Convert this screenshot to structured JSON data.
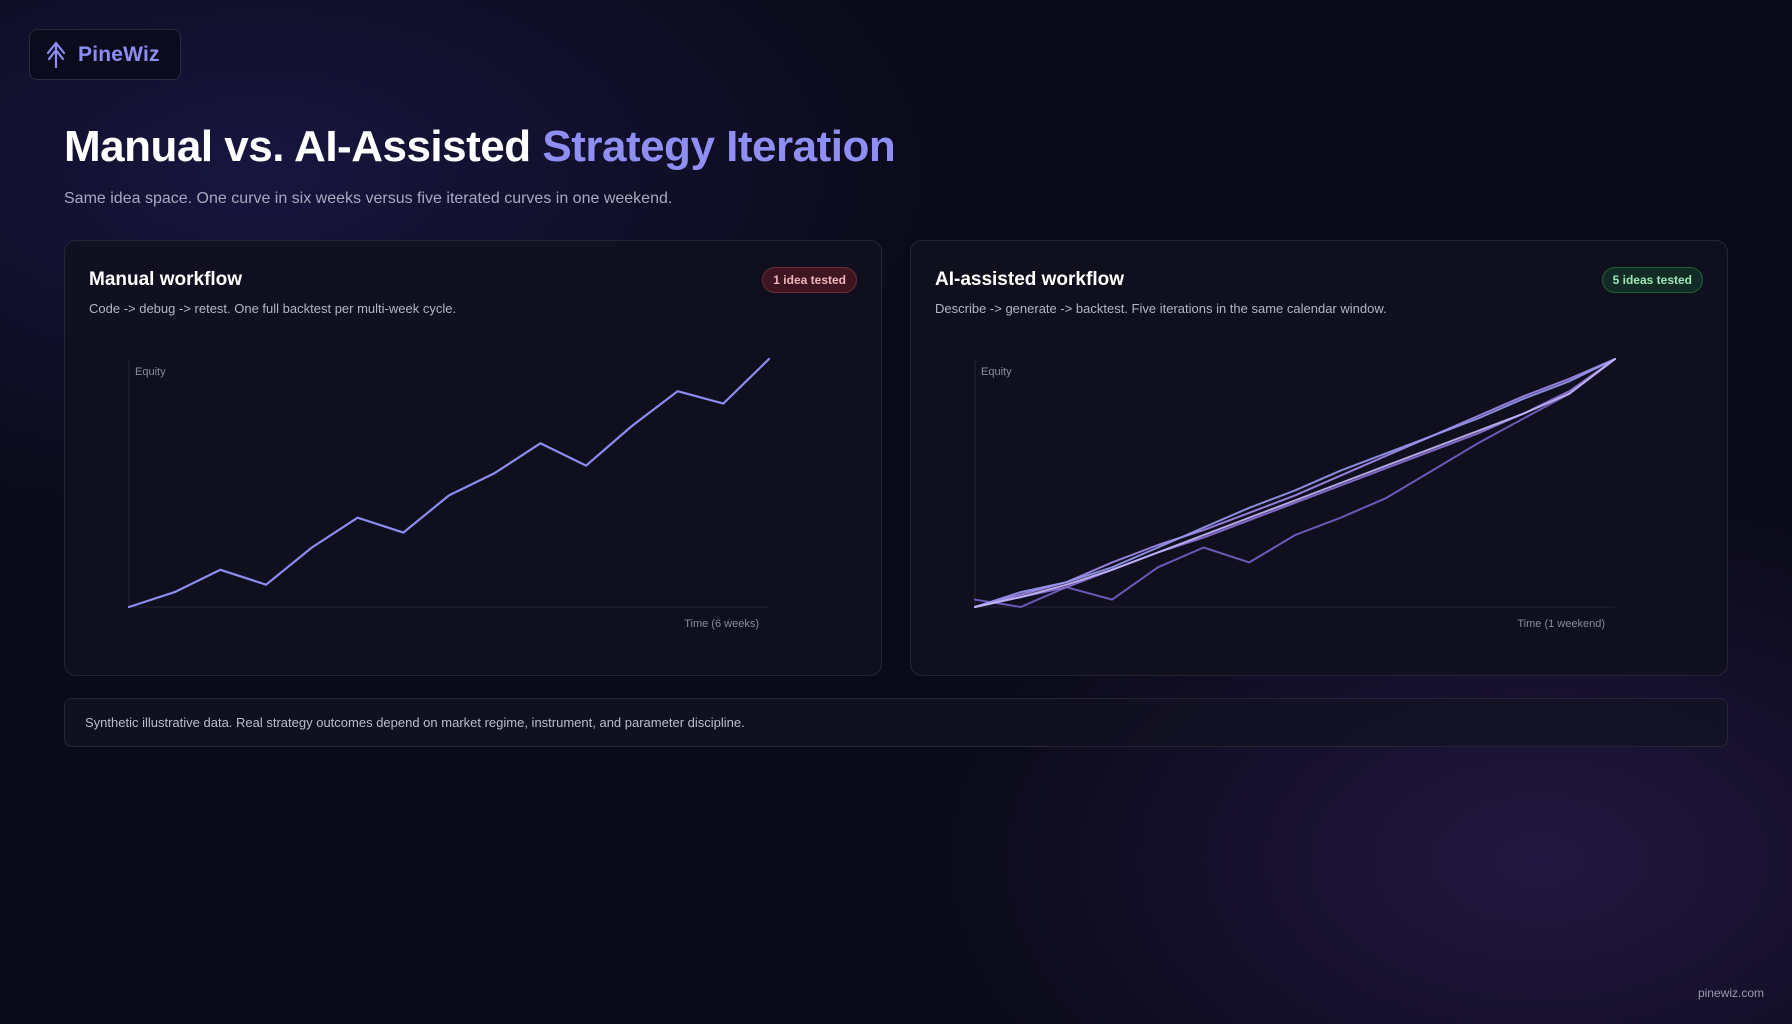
{
  "brand": {
    "name": "PineWiz",
    "icon": "pine-tree-icon",
    "color": "#8d8ef2"
  },
  "header": {
    "title_main": "Manual vs. AI-Assisted ",
    "title_accent": "Strategy Iteration",
    "subtitle": "Same idea space. One curve in six weeks versus five iterated curves in one weekend."
  },
  "manual_card": {
    "title": "Manual workflow",
    "description": "Code -> debug -> retest. One full backtest per multi-week cycle.",
    "badge": "1 idea tested",
    "badge_color": "#f2b4bc"
  },
  "ai_card": {
    "title": "AI-assisted workflow",
    "description": "Describe -> generate -> backtest. Five iterations in the same calendar window.",
    "badge": "5 ideas tested",
    "badge_color": "#9ee6b6"
  },
  "chart_data": [
    {
      "type": "line",
      "ylabel": "Equity",
      "xlabel": "Time (6 weeks)",
      "grid": false,
      "x": [
        0,
        1,
        2,
        3,
        4,
        5,
        6,
        7,
        8,
        9,
        10,
        11,
        12,
        13,
        14
      ],
      "series": [
        {
          "values": [
            0,
            6,
            15,
            9,
            24,
            36,
            30,
            45,
            54,
            66,
            57,
            73,
            87,
            82,
            100
          ],
          "color": "#8c8cf0"
        }
      ],
      "xlim": [
        0,
        14
      ],
      "ylim": [
        0,
        100
      ]
    },
    {
      "type": "line",
      "ylabel": "Equity",
      "xlabel": "Time (1 weekend)",
      "grid": false,
      "x": [
        0,
        1,
        2,
        3,
        4,
        5,
        6,
        7,
        8,
        9,
        10,
        11,
        12,
        13,
        14
      ],
      "series": [
        {
          "values": [
            3,
            0,
            8,
            3,
            16,
            24,
            18,
            29,
            36,
            44,
            55,
            66,
            76,
            86,
            100
          ],
          "color": "#7760c8"
        },
        {
          "values": [
            0,
            4,
            8,
            15,
            22,
            28,
            35,
            42,
            49,
            56,
            63,
            70,
            78,
            87,
            100
          ],
          "color": "#8f72dc"
        },
        {
          "values": [
            0,
            5,
            10,
            18,
            25,
            31,
            38,
            45,
            53,
            61,
            69,
            77,
            85,
            92,
            100
          ],
          "color": "#a48cf0"
        },
        {
          "values": [
            0,
            6,
            10,
            16,
            24,
            32,
            40,
            47,
            55,
            62,
            69,
            76,
            84,
            91,
            100
          ],
          "color": "#9a9af4"
        },
        {
          "values": [
            0,
            4,
            9,
            15,
            22,
            29,
            36,
            43,
            50,
            57,
            64,
            71,
            78,
            86,
            100
          ],
          "color": "#c4b8fa"
        }
      ],
      "xlim": [
        0,
        14
      ],
      "ylim": [
        0,
        100
      ]
    }
  ],
  "footnote": "Synthetic illustrative data. Real strategy outcomes depend on market regime, instrument, and parameter discipline.",
  "site": "pinewiz.com"
}
